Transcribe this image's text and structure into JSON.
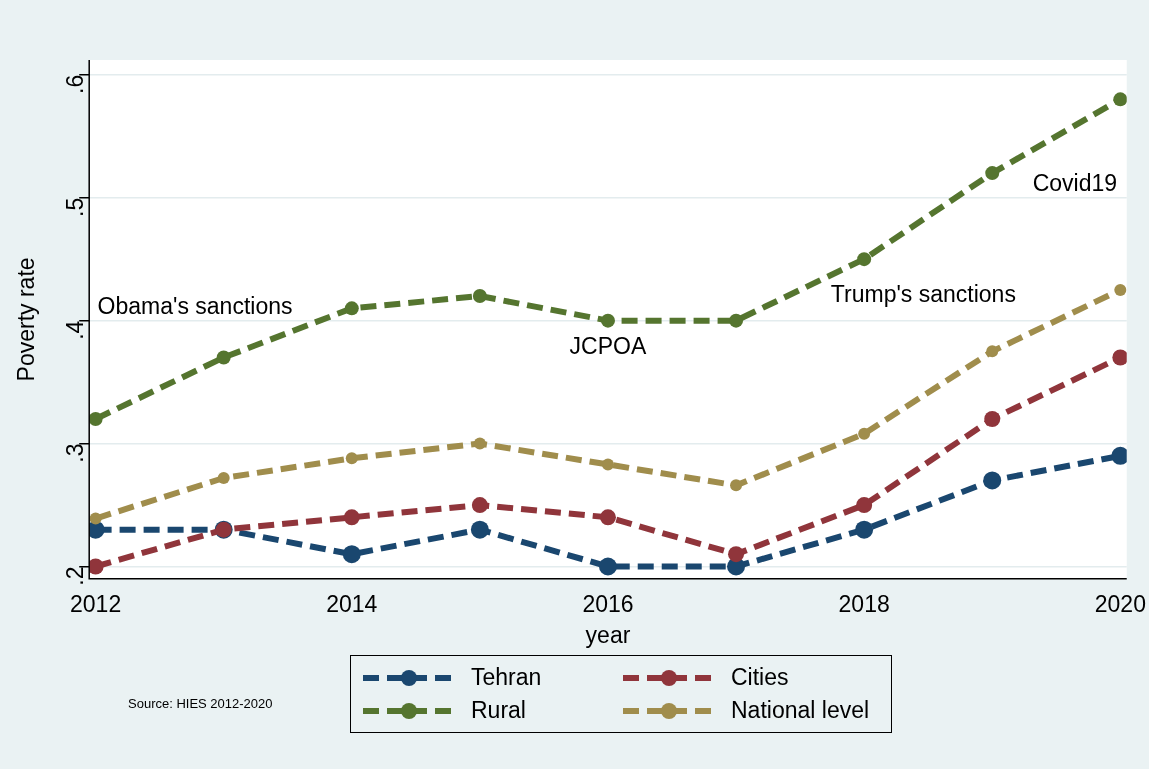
{
  "chart_data": {
    "type": "line",
    "xlabel": "year",
    "ylabel": "Poverty rate",
    "x": [
      2012,
      2013,
      2014,
      2015,
      2016,
      2017,
      2018,
      2019,
      2020
    ],
    "series": [
      {
        "name": "Tehran",
        "color": "#1a476f",
        "line_style": "dashed",
        "values": [
          0.23,
          0.23,
          0.21,
          0.23,
          0.2,
          0.2,
          0.23,
          0.27,
          0.29
        ]
      },
      {
        "name": "Cities",
        "color": "#90353b",
        "line_style": "dashed",
        "values": [
          0.2,
          0.23,
          0.24,
          0.25,
          0.24,
          0.21,
          0.25,
          0.32,
          0.37
        ]
      },
      {
        "name": "Rural",
        "color": "#55752f",
        "line_style": "dashed",
        "values": [
          0.32,
          0.37,
          0.41,
          0.42,
          0.4,
          0.4,
          0.45,
          0.52,
          0.58
        ]
      },
      {
        "name": "National level",
        "color": "#a08d4c",
        "line_style": "dashed",
        "values": [
          0.239,
          0.272,
          0.288,
          0.3,
          0.283,
          0.266,
          0.308,
          0.375,
          0.425
        ]
      }
    ],
    "xlim": [
      2011.95,
      2020.05
    ],
    "xticks": [
      2012,
      2014,
      2016,
      2018,
      2020
    ],
    "ylim": [
      0.19,
      0.612
    ],
    "yticks": [
      {
        "value": 0.2,
        "label": ".2"
      },
      {
        "value": 0.3,
        "label": ".3"
      },
      {
        "value": 0.4,
        "label": ".4"
      },
      {
        "value": 0.5,
        "label": ".5"
      },
      {
        "value": 0.6,
        "label": ".6"
      }
    ],
    "grid": "y",
    "legend": "bottom",
    "marker": "circle",
    "annotations": [
      "Obama's sanctions",
      "JCPOA",
      "Trump's sanctions",
      "Covid19",
      "Source: HIES 2012-2020"
    ]
  }
}
